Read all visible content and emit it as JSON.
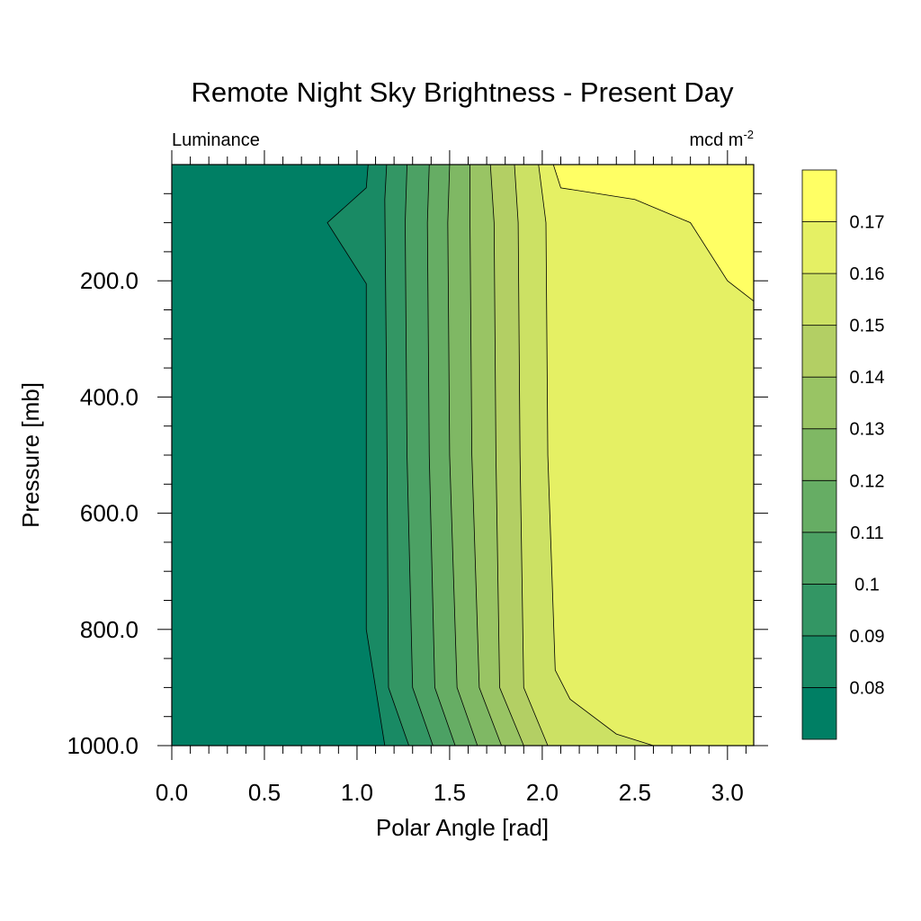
{
  "chart_data": {
    "type": "contour",
    "title": "Remote Night Sky Brightness - Present Day",
    "left_subtitle": "Luminance",
    "right_subtitle": "mcd m",
    "right_subtitle_exponent": "-2",
    "xlabel": "Polar Angle [rad]",
    "ylabel": "Pressure [mb]",
    "xlim": [
      0.0,
      3.14159
    ],
    "ylim": [
      1000.0,
      0.0
    ],
    "x_ticks": [
      {
        "value": 0.0,
        "label": "0.0"
      },
      {
        "value": 0.5,
        "label": "0.5"
      },
      {
        "value": 1.0,
        "label": "1.0"
      },
      {
        "value": 1.5,
        "label": "1.5"
      },
      {
        "value": 2.0,
        "label": "2.0"
      },
      {
        "value": 2.5,
        "label": "2.5"
      },
      {
        "value": 3.0,
        "label": "3.0"
      }
    ],
    "y_ticks": [
      {
        "value": 200,
        "label": "200.0"
      },
      {
        "value": 400,
        "label": "400.0"
      },
      {
        "value": 600,
        "label": "600.0"
      },
      {
        "value": 800,
        "label": "800.0"
      },
      {
        "value": 1000,
        "label": "1000.0"
      }
    ],
    "contour_levels": [
      0.08,
      0.09,
      0.1,
      0.11,
      0.12,
      0.13,
      0.14,
      0.15,
      0.16,
      0.17
    ],
    "colorbar_labels": [
      "0.08",
      "0.09",
      "0.1",
      "0.11",
      "0.12",
      "0.13",
      "0.14",
      "0.15",
      "0.16",
      "0.17"
    ],
    "colors": [
      "#007f64",
      "#198a64",
      "#339664",
      "#4ca164",
      "#66ad64",
      "#7fb864",
      "#99c464",
      "#b3cf64",
      "#cce164",
      "#e5f064",
      "#ffff64"
    ],
    "level_lines": [
      {
        "level": 0.08,
        "points": [
          [
            1.06,
            0
          ],
          [
            1.05,
            40
          ],
          [
            0.84,
            100
          ],
          [
            1.05,
            205
          ],
          [
            1.05,
            800
          ],
          [
            1.15,
            1000
          ]
        ]
      },
      {
        "level": 0.09,
        "points": [
          [
            1.16,
            0
          ],
          [
            1.15,
            60
          ],
          [
            1.16,
            400
          ],
          [
            1.17,
            900
          ],
          [
            1.28,
            1000
          ]
        ]
      },
      {
        "level": 0.1,
        "points": [
          [
            1.27,
            0
          ],
          [
            1.26,
            100
          ],
          [
            1.27,
            500
          ],
          [
            1.3,
            900
          ],
          [
            1.41,
            1000
          ]
        ]
      },
      {
        "level": 0.11,
        "points": [
          [
            1.39,
            0
          ],
          [
            1.38,
            100
          ],
          [
            1.39,
            500
          ],
          [
            1.42,
            900
          ],
          [
            1.53,
            1000
          ]
        ]
      },
      {
        "level": 0.12,
        "points": [
          [
            1.5,
            0
          ],
          [
            1.49,
            100
          ],
          [
            1.5,
            500
          ],
          [
            1.54,
            900
          ],
          [
            1.65,
            1000
          ]
        ]
      },
      {
        "level": 0.13,
        "points": [
          [
            1.61,
            0
          ],
          [
            1.61,
            100
          ],
          [
            1.62,
            500
          ],
          [
            1.66,
            900
          ],
          [
            1.78,
            1000
          ]
        ]
      },
      {
        "level": 0.14,
        "points": [
          [
            1.72,
            0
          ],
          [
            1.74,
            100
          ],
          [
            1.75,
            500
          ],
          [
            1.77,
            900
          ],
          [
            1.9,
            1000
          ]
        ]
      },
      {
        "level": 0.15,
        "points": [
          [
            1.85,
            0
          ],
          [
            1.87,
            100
          ],
          [
            1.88,
            500
          ],
          [
            1.9,
            900
          ],
          [
            2.03,
            1000
          ]
        ]
      },
      {
        "level": 0.16,
        "points": [
          [
            1.98,
            0
          ],
          [
            2.02,
            100
          ],
          [
            2.03,
            500
          ],
          [
            2.07,
            870
          ],
          [
            2.15,
            920
          ],
          [
            2.4,
            980
          ],
          [
            2.6,
            1000
          ]
        ]
      },
      {
        "level": 0.17,
        "points": [
          [
            2.06,
            0
          ],
          [
            2.1,
            40
          ],
          [
            2.5,
            60
          ],
          [
            2.8,
            100
          ],
          [
            3.0,
            200
          ],
          [
            3.14159,
            235
          ]
        ]
      }
    ]
  }
}
